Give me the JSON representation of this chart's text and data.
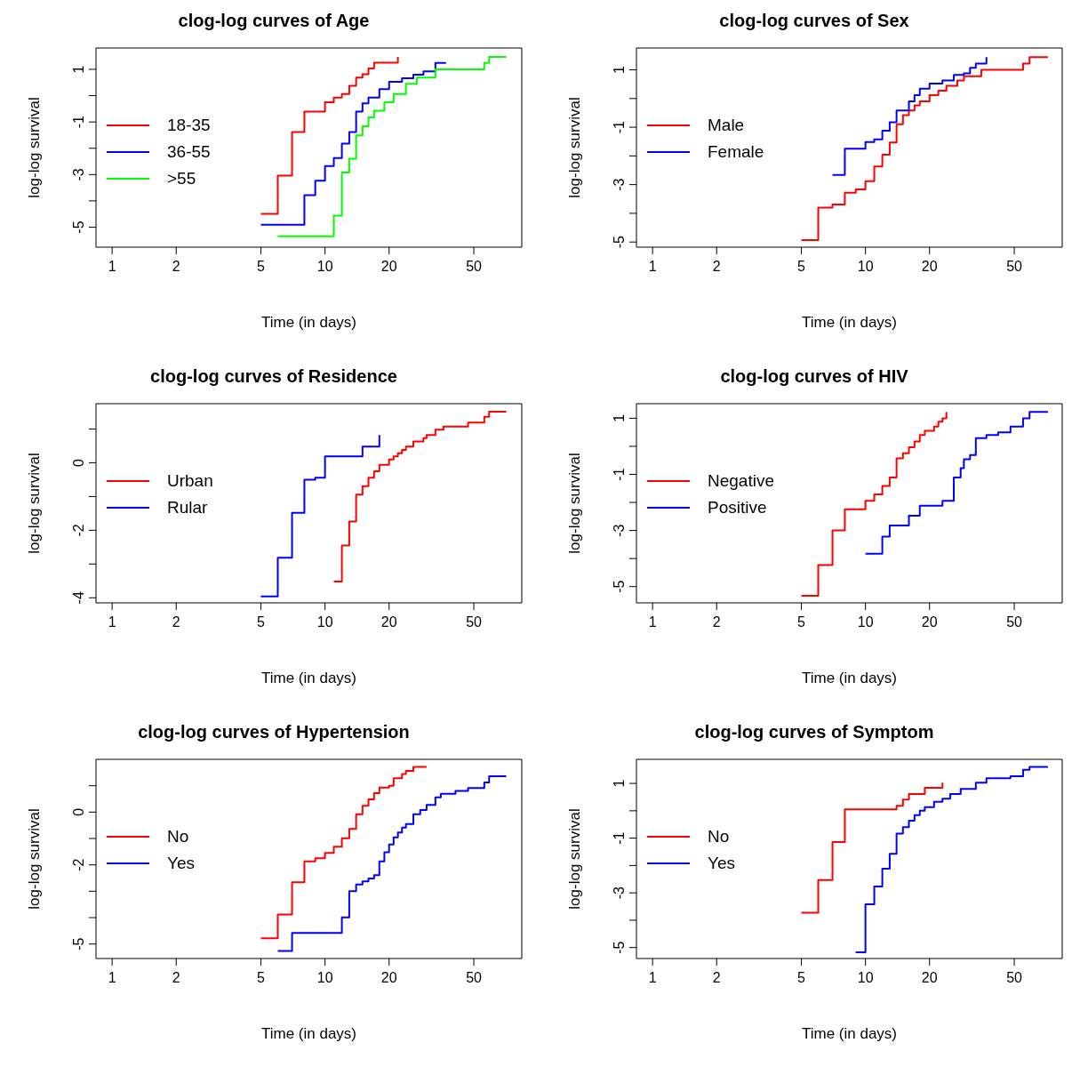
{
  "chart_data": [
    {
      "type": "step",
      "title": "clog-log curves of Age",
      "xlabel": "Time (in days)",
      "ylabel": "log-log survival",
      "log": "x",
      "legend": "left",
      "marker": "none",
      "xlim": [
        0.84,
        84
      ],
      "xticks": [
        1,
        2,
        5,
        10,
        20,
        50
      ],
      "ylim": [
        -5.76,
        1.81
      ],
      "yticks": [
        {
          "value": -5,
          "label": "-5"
        },
        {
          "value": -4,
          "label": null
        },
        {
          "value": -3,
          "label": "-3"
        },
        {
          "value": -2,
          "label": null
        },
        {
          "value": -1,
          "label": "-1"
        },
        {
          "value": 0,
          "label": null
        },
        {
          "value": 1,
          "label": "1"
        }
      ],
      "series": [
        {
          "name": "18-35",
          "color": "#ff0000",
          "x": [
            5,
            6,
            7,
            8,
            10,
            11,
            12,
            13,
            14,
            15,
            16,
            17,
            22
          ],
          "values": [
            -4.49,
            -3.04,
            -1.38,
            -0.61,
            -0.25,
            -0.07,
            0.06,
            0.37,
            0.69,
            0.81,
            1.03,
            1.25,
            1.47
          ]
        },
        {
          "name": "36-55",
          "color": "#0000ff",
          "x": [
            5,
            8,
            9,
            10,
            11,
            12,
            13,
            14,
            15,
            16,
            18,
            20,
            23,
            26,
            29,
            33,
            37
          ],
          "values": [
            -4.91,
            -3.78,
            -3.23,
            -2.68,
            -2.37,
            -1.82,
            -1.38,
            -0.61,
            -0.29,
            -0.07,
            0.25,
            0.53,
            0.66,
            0.8,
            0.92,
            1.24,
            1.24
          ]
        },
        {
          "name": ">55",
          "color": "#00ff00",
          "x": [
            6,
            11,
            12,
            13,
            14,
            15,
            16,
            17,
            19,
            21,
            24,
            27,
            33,
            56,
            59,
            71
          ],
          "values": [
            -5.35,
            -4.56,
            -2.92,
            -2.4,
            -1.51,
            -1.16,
            -0.83,
            -0.57,
            -0.25,
            0.06,
            0.45,
            0.69,
            1.0,
            1.24,
            1.47,
            1.47
          ]
        }
      ]
    },
    {
      "type": "step",
      "title": "clog-log curves of Sex",
      "xlabel": "Time (in days)",
      "ylabel": "log-log survival",
      "log": "x",
      "legend": "left",
      "marker": "none",
      "xlim": [
        0.84,
        84
      ],
      "xticks": [
        1,
        2,
        5,
        10,
        20,
        50
      ],
      "ylim": [
        -5.18,
        1.76
      ],
      "yticks": [
        {
          "value": -5,
          "label": "-5"
        },
        {
          "value": -4,
          "label": null
        },
        {
          "value": -3,
          "label": "-3"
        },
        {
          "value": -2,
          "label": null
        },
        {
          "value": -1,
          "label": "-1"
        },
        {
          "value": 0,
          "label": null
        },
        {
          "value": 1,
          "label": "1"
        }
      ],
      "series": [
        {
          "name": "Male",
          "color": "#ff0000",
          "x": [
            5,
            6,
            7,
            8,
            9,
            10,
            11,
            12,
            13,
            14,
            15,
            16,
            17,
            18,
            20,
            22,
            24,
            27,
            29,
            35,
            55,
            59,
            72
          ],
          "values": [
            -4.93,
            -3.8,
            -3.69,
            -3.28,
            -3.17,
            -2.88,
            -2.37,
            -1.96,
            -1.53,
            -0.9,
            -0.58,
            -0.42,
            -0.24,
            -0.1,
            0.12,
            0.27,
            0.44,
            0.63,
            0.78,
            1.0,
            1.22,
            1.44,
            1.44
          ]
        },
        {
          "name": "Female",
          "color": "#0000ff",
          "x": [
            7,
            8,
            10,
            11,
            12,
            13,
            14,
            16,
            17,
            18,
            20,
            23,
            26,
            29,
            31,
            33,
            37
          ],
          "values": [
            -2.66,
            -1.75,
            -1.52,
            -1.42,
            -1.12,
            -0.83,
            -0.42,
            -0.1,
            0.12,
            0.34,
            0.52,
            0.63,
            0.82,
            0.88,
            1.07,
            1.22,
            1.44
          ]
        }
      ]
    },
    {
      "type": "step",
      "title": "clog-log curves of Residence",
      "xlabel": "Time (in days)",
      "ylabel": "log-log survival",
      "log": "x",
      "legend": "left",
      "marker": "none",
      "xlim": [
        0.84,
        84
      ],
      "xticks": [
        1,
        2,
        5,
        10,
        20,
        50
      ],
      "ylim": [
        -4.15,
        1.75
      ],
      "yticks": [
        {
          "value": -4,
          "label": "-4"
        },
        {
          "value": -3,
          "label": null
        },
        {
          "value": -2,
          "label": "-2"
        },
        {
          "value": -1,
          "label": null
        },
        {
          "value": 0,
          "label": "0"
        },
        {
          "value": 1,
          "label": null
        }
      ],
      "series": [
        {
          "name": "Urban",
          "color": "#ff0000",
          "x": [
            11,
            12,
            13,
            14,
            15,
            16,
            17,
            18,
            20,
            21,
            22,
            23,
            24,
            26,
            29,
            30,
            33,
            36,
            47,
            56,
            59,
            71
          ],
          "values": [
            -3.52,
            -2.45,
            -1.74,
            -0.94,
            -0.69,
            -0.44,
            -0.25,
            -0.06,
            0.1,
            0.19,
            0.28,
            0.38,
            0.48,
            0.63,
            0.73,
            0.82,
            0.98,
            1.07,
            1.19,
            1.36,
            1.51,
            1.51
          ]
        },
        {
          "name": "Rular",
          "color": "#0000ff",
          "x": [
            5,
            6,
            7,
            8,
            9,
            10,
            15,
            18
          ],
          "values": [
            -3.96,
            -2.81,
            -1.48,
            -0.5,
            -0.44,
            0.19,
            0.48,
            0.82
          ]
        }
      ]
    },
    {
      "type": "step",
      "title": "clog-log curves of HIV",
      "xlabel": "Time (in days)",
      "ylabel": "log-log survival",
      "log": "x",
      "legend": "left",
      "marker": "none",
      "xlim": [
        0.84,
        84
      ],
      "xticks": [
        1,
        2,
        5,
        10,
        20,
        50
      ],
      "ylim": [
        -5.58,
        1.52
      ],
      "yticks": [
        {
          "value": -5,
          "label": "-5"
        },
        {
          "value": -4,
          "label": null
        },
        {
          "value": -3,
          "label": "-3"
        },
        {
          "value": -2,
          "label": null
        },
        {
          "value": -1,
          "label": "-1"
        },
        {
          "value": 0,
          "label": null
        },
        {
          "value": 1,
          "label": "1"
        }
      ],
      "series": [
        {
          "name": "Negative",
          "color": "#ff0000",
          "x": [
            5,
            6,
            7,
            8,
            10,
            11,
            12,
            13,
            14,
            15,
            16,
            17,
            18,
            19,
            21,
            22,
            23,
            24
          ],
          "values": [
            -5.33,
            -4.23,
            -3.0,
            -2.24,
            -1.94,
            -1.71,
            -1.41,
            -1.11,
            -0.43,
            -0.25,
            -0.03,
            0.17,
            0.4,
            0.55,
            0.7,
            0.88,
            1.0,
            1.23
          ]
        },
        {
          "name": "Positive",
          "color": "#0000ff",
          "x": [
            10,
            12,
            13,
            16,
            18,
            23,
            26,
            28,
            29,
            31,
            33,
            37,
            42,
            48,
            55,
            59,
            72
          ],
          "values": [
            -3.83,
            -3.22,
            -2.82,
            -2.47,
            -2.12,
            -1.94,
            -1.11,
            -0.78,
            -0.46,
            -0.31,
            0.29,
            0.4,
            0.5,
            0.7,
            1.0,
            1.23,
            1.23
          ]
        }
      ]
    },
    {
      "type": "step",
      "title": "clog-log curves of Hypertension",
      "xlabel": "Time (in days)",
      "ylabel": "log-log survival",
      "log": "x",
      "legend": "left",
      "marker": "none",
      "xlim": [
        0.84,
        84
      ],
      "xticks": [
        1,
        2,
        5,
        10,
        20,
        50
      ],
      "ylim": [
        -5.55,
        2.0
      ],
      "yticks": [
        {
          "value": -5,
          "label": "-5"
        },
        {
          "value": -4,
          "label": null
        },
        {
          "value": -3,
          "label": null
        },
        {
          "value": -2,
          "label": "-2"
        },
        {
          "value": -1,
          "label": null
        },
        {
          "value": 0,
          "label": "0"
        },
        {
          "value": 1,
          "label": null
        }
      ],
      "series": [
        {
          "name": "No",
          "color": "#ff0000",
          "x": [
            5,
            6,
            7,
            8,
            9,
            10,
            11,
            12,
            13,
            14,
            15,
            16,
            17,
            18,
            20,
            21,
            23,
            24,
            26,
            30
          ],
          "values": [
            -4.78,
            -3.88,
            -2.66,
            -1.87,
            -1.75,
            -1.55,
            -1.31,
            -0.99,
            -0.64,
            -0.08,
            0.24,
            0.48,
            0.72,
            0.93,
            1.0,
            1.28,
            1.44,
            1.56,
            1.71,
            1.71
          ]
        },
        {
          "name": "Yes",
          "color": "#0000ff",
          "x": [
            6,
            7,
            12,
            13,
            14,
            15,
            16,
            17,
            18,
            19,
            20,
            21,
            22,
            23,
            24,
            26,
            28,
            30,
            33,
            35,
            41,
            47,
            56,
            59,
            71
          ],
          "values": [
            -5.26,
            -4.58,
            -3.99,
            -3.0,
            -2.74,
            -2.63,
            -2.52,
            -2.39,
            -1.87,
            -1.52,
            -1.23,
            -0.96,
            -0.77,
            -0.59,
            -0.45,
            -0.08,
            0.08,
            0.27,
            0.56,
            0.69,
            0.8,
            0.91,
            1.12,
            1.36,
            1.36
          ]
        }
      ]
    },
    {
      "type": "step",
      "title": "clog-log curves of Symptom",
      "xlabel": "Time (in days)",
      "ylabel": "log-log survival",
      "log": "x",
      "legend": "left",
      "marker": "none",
      "xlim": [
        0.84,
        84
      ],
      "xticks": [
        1,
        2,
        5,
        10,
        20,
        50
      ],
      "ylim": [
        -5.4,
        1.88
      ],
      "yticks": [
        {
          "value": -5,
          "label": "-5"
        },
        {
          "value": -4,
          "label": null
        },
        {
          "value": -3,
          "label": "-3"
        },
        {
          "value": -2,
          "label": null
        },
        {
          "value": -1,
          "label": "-1"
        },
        {
          "value": 0,
          "label": null
        },
        {
          "value": 1,
          "label": "1"
        }
      ],
      "series": [
        {
          "name": "No",
          "color": "#ff0000",
          "x": [
            5,
            6,
            7,
            8,
            14,
            15,
            16,
            19,
            23
          ],
          "values": [
            -3.73,
            -2.53,
            -1.14,
            0.05,
            0.18,
            0.41,
            0.61,
            0.84,
            1.03
          ]
        },
        {
          "name": "Yes",
          "color": "#0000ff",
          "x": [
            9,
            10,
            11,
            12,
            13,
            14,
            15,
            16,
            17,
            18,
            19,
            21,
            23,
            25,
            28,
            33,
            37,
            48,
            55,
            59,
            72
          ],
          "values": [
            -5.17,
            -3.42,
            -2.77,
            -2.12,
            -1.57,
            -0.83,
            -0.6,
            -0.36,
            -0.16,
            0.0,
            0.13,
            0.33,
            0.44,
            0.61,
            0.8,
            1.03,
            1.19,
            1.26,
            1.5,
            1.6,
            1.6
          ]
        }
      ]
    }
  ]
}
